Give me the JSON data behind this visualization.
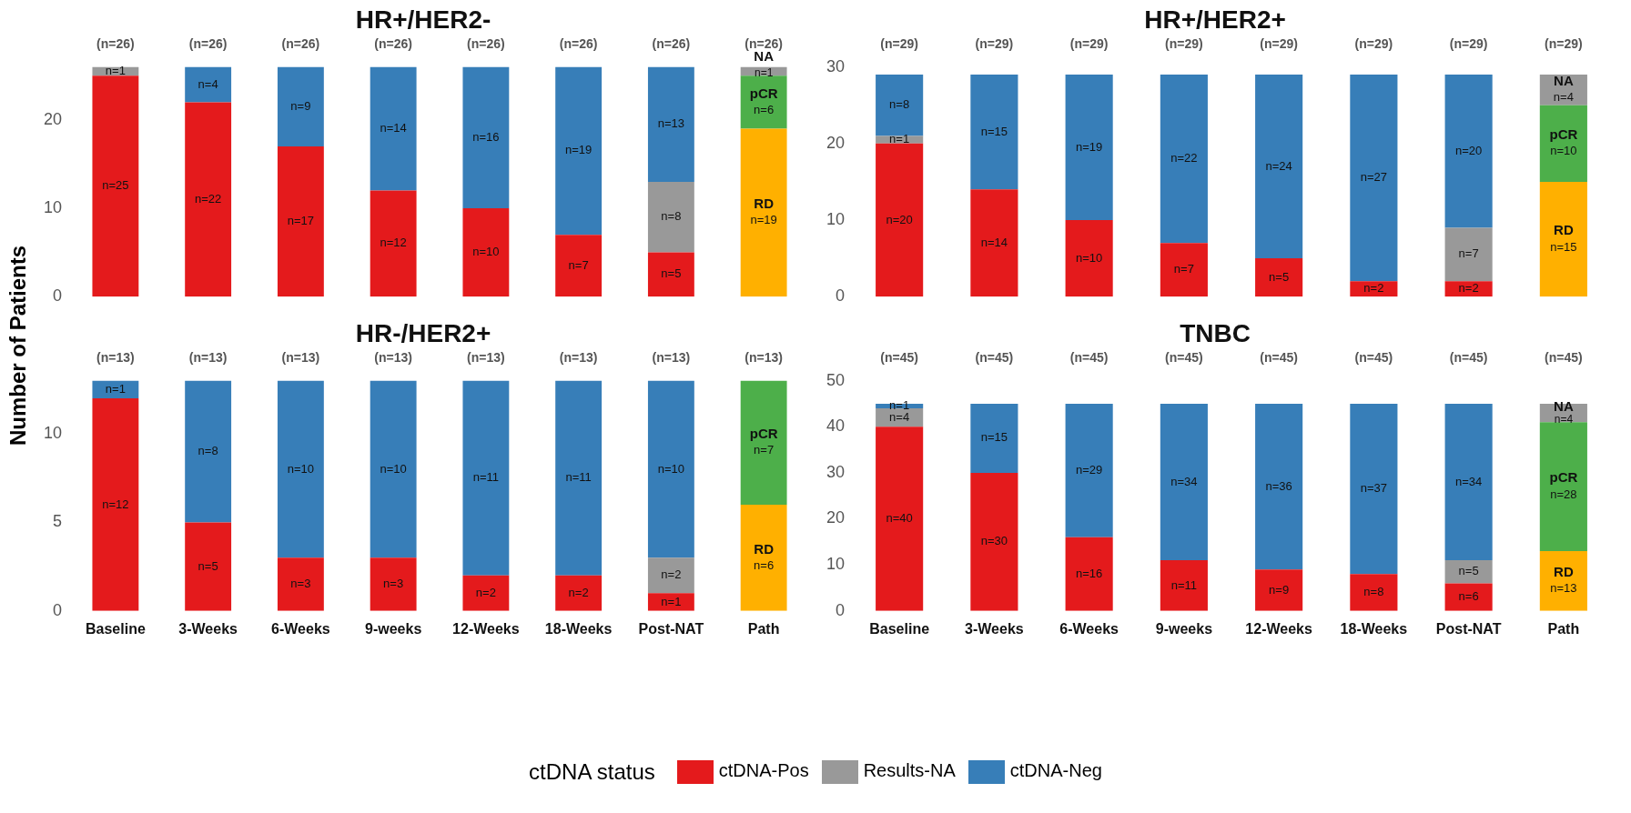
{
  "chart_data": [
    {
      "type": "bar",
      "title": "HR+/HER2-",
      "ylabel": "Number of Patients",
      "stacked": true,
      "grid": false,
      "tick_labels": "y",
      "legend": "bottom",
      "legend_title": "ctDNA status",
      "categories": [
        "Baseline",
        "3-Weeks",
        "6-Weeks",
        "9-weeks",
        "12-Weeks",
        "18-Weeks",
        "Post-NAT",
        "Path"
      ],
      "ylim": [
        0,
        26
      ],
      "yticks": [
        0,
        10,
        20
      ],
      "totals": [
        "(n=26)",
        "(n=26)",
        "(n=26)",
        "(n=26)",
        "(n=26)",
        "(n=26)",
        "(n=26)",
        "(n=26)"
      ],
      "series": [
        {
          "name": "ctDNA-Pos",
          "color": "#e41a1c",
          "values": [
            25,
            22,
            17,
            12,
            10,
            7,
            5,
            null
          ],
          "value_labels": [
            "n=25",
            "n=22",
            "n=17",
            "n=12",
            "n=10",
            "n=7",
            "n=5",
            null
          ]
        },
        {
          "name": "Results-NA",
          "color": "#999999",
          "values": [
            1,
            null,
            null,
            null,
            null,
            null,
            8,
            null
          ],
          "value_labels": [
            "n=1",
            null,
            null,
            null,
            null,
            null,
            "n=8",
            null
          ]
        },
        {
          "name": "ctDNA-Neg",
          "color": "#377eb8",
          "values": [
            null,
            4,
            9,
            14,
            16,
            19,
            13,
            null
          ],
          "value_labels": [
            null,
            "n=4",
            "n=9",
            "n=14",
            "n=16",
            "n=19",
            "n=13",
            null
          ]
        },
        {
          "name": "RD",
          "color": "#ffb000",
          "values": [
            null,
            null,
            null,
            null,
            null,
            null,
            null,
            19
          ],
          "value_labels": [
            null,
            null,
            null,
            null,
            null,
            null,
            null,
            "n=19"
          ]
        },
        {
          "name": "pCR",
          "color": "#4daf4a",
          "values": [
            null,
            null,
            null,
            null,
            null,
            null,
            null,
            6
          ],
          "value_labels": [
            null,
            null,
            null,
            null,
            null,
            null,
            null,
            "n=6"
          ]
        },
        {
          "name": "NA",
          "color": "#999999",
          "values": [
            null,
            null,
            null,
            null,
            null,
            null,
            null,
            1
          ],
          "value_labels": [
            null,
            null,
            null,
            null,
            null,
            null,
            null,
            "n=1"
          ]
        }
      ]
    },
    {
      "type": "bar",
      "title": "HR+/HER2+",
      "stacked": true,
      "grid": false,
      "tick_labels": "y",
      "categories": [
        "Baseline",
        "3-Weeks",
        "6-Weeks",
        "9-weeks",
        "12-Weeks",
        "18-Weeks",
        "Post-NAT",
        "Path"
      ],
      "ylim": [
        0,
        30
      ],
      "yticks": [
        0,
        10,
        20,
        30
      ],
      "totals": [
        "(n=29)",
        "(n=29)",
        "(n=29)",
        "(n=29)",
        "(n=29)",
        "(n=29)",
        "(n=29)",
        "(n=29)"
      ],
      "series": [
        {
          "name": "ctDNA-Pos",
          "color": "#e41a1c",
          "values": [
            20,
            14,
            10,
            7,
            5,
            2,
            2,
            null
          ],
          "value_labels": [
            "n=20",
            "n=14",
            "n=10",
            "n=7",
            "n=5",
            "n=2",
            "n=2",
            null
          ]
        },
        {
          "name": "Results-NA",
          "color": "#999999",
          "values": [
            1,
            null,
            null,
            null,
            null,
            null,
            7,
            null
          ],
          "value_labels": [
            "n=1",
            null,
            null,
            null,
            null,
            null,
            "n=7",
            null
          ]
        },
        {
          "name": "ctDNA-Neg",
          "color": "#377eb8",
          "values": [
            8,
            15,
            19,
            22,
            24,
            27,
            20,
            null
          ],
          "value_labels": [
            "n=8",
            "n=15",
            "n=19",
            "n=22",
            "n=24",
            "n=27",
            "n=20",
            null
          ]
        },
        {
          "name": "RD",
          "color": "#ffb000",
          "values": [
            null,
            null,
            null,
            null,
            null,
            null,
            null,
            15
          ],
          "value_labels": [
            null,
            null,
            null,
            null,
            null,
            null,
            null,
            "n=15"
          ]
        },
        {
          "name": "pCR",
          "color": "#4daf4a",
          "values": [
            null,
            null,
            null,
            null,
            null,
            null,
            null,
            10
          ],
          "value_labels": [
            null,
            null,
            null,
            null,
            null,
            null,
            null,
            "n=10"
          ]
        },
        {
          "name": "NA",
          "color": "#999999",
          "values": [
            null,
            null,
            null,
            null,
            null,
            null,
            null,
            4
          ],
          "value_labels": [
            null,
            null,
            null,
            null,
            null,
            null,
            null,
            "n=4"
          ]
        }
      ]
    },
    {
      "type": "bar",
      "title": "HR-/HER2+",
      "stacked": true,
      "grid": false,
      "categories": [
        "Baseline",
        "3-Weeks",
        "6-Weeks",
        "9-weeks",
        "12-Weeks",
        "18-Weeks",
        "Post-NAT",
        "Path"
      ],
      "ylim": [
        0,
        13
      ],
      "yticks": [
        0,
        5,
        10
      ],
      "totals": [
        "(n=13)",
        "(n=13)",
        "(n=13)",
        "(n=13)",
        "(n=13)",
        "(n=13)",
        "(n=13)",
        "(n=13)"
      ],
      "series": [
        {
          "name": "ctDNA-Pos",
          "color": "#e41a1c",
          "values": [
            12,
            5,
            3,
            3,
            2,
            2,
            1,
            null
          ],
          "value_labels": [
            "n=12",
            "n=5",
            "n=3",
            "n=3",
            "n=2",
            "n=2",
            "n=1",
            null
          ]
        },
        {
          "name": "Results-NA",
          "color": "#999999",
          "values": [
            null,
            null,
            null,
            null,
            null,
            null,
            2,
            null
          ],
          "value_labels": [
            null,
            null,
            null,
            null,
            null,
            null,
            "n=2",
            null
          ]
        },
        {
          "name": "ctDNA-Neg",
          "color": "#377eb8",
          "values": [
            1,
            8,
            10,
            10,
            11,
            11,
            10,
            null
          ],
          "value_labels": [
            "n=1",
            "n=8",
            "n=10",
            "n=10",
            "n=11",
            "n=11",
            "n=10",
            null
          ]
        },
        {
          "name": "RD",
          "color": "#ffb000",
          "values": [
            null,
            null,
            null,
            null,
            null,
            null,
            null,
            6
          ],
          "value_labels": [
            null,
            null,
            null,
            null,
            null,
            null,
            null,
            "n=6"
          ]
        },
        {
          "name": "pCR",
          "color": "#4daf4a",
          "values": [
            null,
            null,
            null,
            null,
            null,
            null,
            null,
            7
          ],
          "value_labels": [
            null,
            null,
            null,
            null,
            null,
            null,
            null,
            "n=7"
          ]
        }
      ]
    },
    {
      "type": "bar",
      "title": "TNBC",
      "stacked": true,
      "grid": false,
      "categories": [
        "Baseline",
        "3-Weeks",
        "6-Weeks",
        "9-weeks",
        "12-Weeks",
        "18-Weeks",
        "Post-NAT",
        "Path"
      ],
      "ylim": [
        0,
        50
      ],
      "yticks": [
        0,
        10,
        20,
        30,
        40,
        50
      ],
      "totals": [
        "(n=45)",
        "(n=45)",
        "(n=45)",
        "(n=45)",
        "(n=45)",
        "(n=45)",
        "(n=45)",
        "(n=45)"
      ],
      "series": [
        {
          "name": "ctDNA-Pos",
          "color": "#e41a1c",
          "values": [
            40,
            30,
            16,
            11,
            9,
            8,
            6,
            null
          ],
          "value_labels": [
            "n=40",
            "n=30",
            "n=16",
            "n=11",
            "n=9",
            "n=8",
            "n=6",
            null
          ]
        },
        {
          "name": "Results-NA",
          "color": "#999999",
          "values": [
            4,
            null,
            null,
            null,
            null,
            null,
            5,
            null
          ],
          "value_labels": [
            "n=4",
            null,
            null,
            null,
            null,
            null,
            "n=5",
            null
          ]
        },
        {
          "name": "ctDNA-Neg",
          "color": "#377eb8",
          "values": [
            1,
            15,
            29,
            34,
            36,
            37,
            34,
            null
          ],
          "value_labels": [
            "n=1",
            "n=15",
            "n=29",
            "n=34",
            "n=36",
            "n=37",
            "n=34",
            null
          ]
        },
        {
          "name": "RD",
          "color": "#ffb000",
          "values": [
            null,
            null,
            null,
            null,
            null,
            null,
            null,
            13
          ],
          "value_labels": [
            null,
            null,
            null,
            null,
            null,
            null,
            null,
            "n=13"
          ]
        },
        {
          "name": "pCR",
          "color": "#4daf4a",
          "values": [
            null,
            null,
            null,
            null,
            null,
            null,
            null,
            28
          ],
          "value_labels": [
            null,
            null,
            null,
            null,
            null,
            null,
            null,
            "n=28"
          ]
        },
        {
          "name": "NA",
          "color": "#999999",
          "values": [
            null,
            null,
            null,
            null,
            null,
            null,
            null,
            4
          ],
          "value_labels": [
            null,
            null,
            null,
            null,
            null,
            null,
            null,
            "n=4"
          ]
        }
      ]
    }
  ]
}
